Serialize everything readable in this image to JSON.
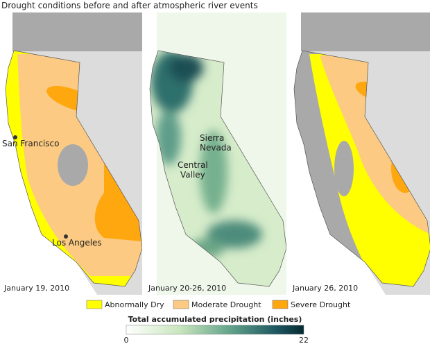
{
  "title": "Drought conditions before and after atmospheric river events",
  "panels": [
    {
      "date": "January 19, 2010",
      "places": [
        {
          "lines": [
            "San Francisco"
          ]
        },
        {
          "lines": [
            "Los Angeles"
          ]
        }
      ]
    },
    {
      "date": "January 20-26, 2010",
      "places": [
        {
          "lines": [
            "Sierra",
            "Nevada"
          ]
        },
        {
          "lines": [
            "Central",
            "Valley"
          ]
        }
      ]
    },
    {
      "date": "January 26, 2010"
    }
  ],
  "legend": [
    "Abnormally Dry",
    "Moderate Drought",
    "Severe Drought"
  ],
  "colorbar": {
    "title": "Total accumulated precipitation (inches)",
    "min": 0,
    "max": 22
  }
}
